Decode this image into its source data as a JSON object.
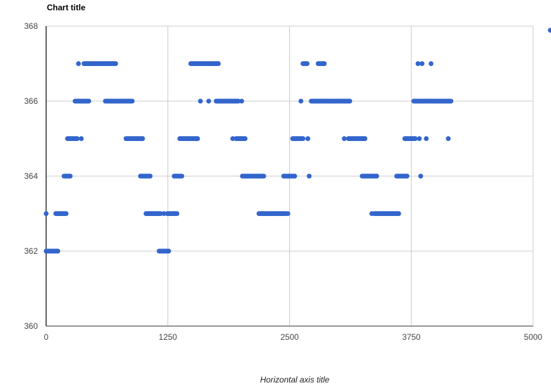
{
  "chart_data": {
    "type": "scatter",
    "title": "Chart title",
    "xlabel": "Horizontal axis title",
    "ylabel": "",
    "xlim": [
      0,
      5000
    ],
    "ylim": [
      360,
      368
    ],
    "xticks": [
      "0",
      "1250",
      "2500",
      "3750",
      "5000"
    ],
    "yticks": [
      "360",
      "362",
      "364",
      "366",
      "368"
    ],
    "grid": true,
    "legend": "top-right",
    "series_color": "#3366cc",
    "runs": [
      {
        "y": 362,
        "x": [
          0,
          120
        ]
      },
      {
        "y": 362,
        "x": [
          1160,
          1258
        ]
      },
      {
        "y": 363,
        "x": [
          0,
          0
        ]
      },
      {
        "y": 363,
        "x": [
          99,
          205
        ]
      },
      {
        "y": 363,
        "x": [
          1025,
          1174
        ]
      },
      {
        "y": 363,
        "x": [
          1209,
          1209
        ]
      },
      {
        "y": 363,
        "x": [
          1244,
          1343
        ]
      },
      {
        "y": 363,
        "x": [
          2185,
          2460
        ]
      },
      {
        "y": 363,
        "x": [
          2482,
          2482
        ]
      },
      {
        "y": 363,
        "x": [
          3344,
          3344
        ]
      },
      {
        "y": 363,
        "x": [
          3372,
          3620
        ]
      },
      {
        "y": 364,
        "x": [
          184,
          247
        ]
      },
      {
        "y": 364,
        "x": [
          969,
          1068
        ]
      },
      {
        "y": 364,
        "x": [
          1315,
          1393
        ]
      },
      {
        "y": 364,
        "x": [
          2015,
          2234
        ]
      },
      {
        "y": 364,
        "x": [
          2439,
          2552
        ]
      },
      {
        "y": 364,
        "x": [
          2701,
          2701
        ]
      },
      {
        "y": 364,
        "x": [
          3245,
          3394
        ]
      },
      {
        "y": 364,
        "x": [
          3599,
          3705
        ]
      },
      {
        "y": 364,
        "x": [
          3846,
          3846
        ]
      },
      {
        "y": 365,
        "x": [
          219,
          318
        ]
      },
      {
        "y": 365,
        "x": [
          361,
          361
        ]
      },
      {
        "y": 365,
        "x": [
          820,
          990
        ]
      },
      {
        "y": 365,
        "x": [
          1372,
          1555
        ]
      },
      {
        "y": 365,
        "x": [
          1916,
          1916
        ]
      },
      {
        "y": 365,
        "x": [
          1951,
          2043
        ]
      },
      {
        "y": 365,
        "x": [
          2531,
          2637
        ]
      },
      {
        "y": 365,
        "x": [
          2687,
          2687
        ]
      },
      {
        "y": 365,
        "x": [
          3061,
          3061
        ]
      },
      {
        "y": 365,
        "x": [
          3104,
          3273
        ]
      },
      {
        "y": 365,
        "x": [
          3683,
          3790
        ]
      },
      {
        "y": 365,
        "x": [
          3832,
          3832
        ]
      },
      {
        "y": 365,
        "x": [
          3903,
          3903
        ]
      },
      {
        "y": 365,
        "x": [
          4129,
          4129
        ]
      },
      {
        "y": 366,
        "x": [
          297,
          438
        ]
      },
      {
        "y": 366,
        "x": [
          608,
          884
        ]
      },
      {
        "y": 366,
        "x": [
          1584,
          1584
        ]
      },
      {
        "y": 366,
        "x": [
          1669,
          1669
        ]
      },
      {
        "y": 366,
        "x": [
          1746,
          1973
        ]
      },
      {
        "y": 366,
        "x": [
          2008,
          2008
        ]
      },
      {
        "y": 366,
        "x": [
          2616,
          2616
        ]
      },
      {
        "y": 366,
        "x": [
          2722,
          3118
        ]
      },
      {
        "y": 366,
        "x": [
          3775,
          4157
        ]
      },
      {
        "y": 367,
        "x": [
          332,
          332
        ]
      },
      {
        "y": 367,
        "x": [
          389,
          636
        ]
      },
      {
        "y": 367,
        "x": [
          650,
          714
        ]
      },
      {
        "y": 367,
        "x": [
          1485,
          1768
        ]
      },
      {
        "y": 367,
        "x": [
          2637,
          2680
        ]
      },
      {
        "y": 367,
        "x": [
          2793,
          2856
        ]
      },
      {
        "y": 367,
        "x": [
          3818,
          3818
        ]
      },
      {
        "y": 367,
        "x": [
          3860,
          3860
        ]
      },
      {
        "y": 367,
        "x": [
          3952,
          3952
        ]
      }
    ]
  }
}
